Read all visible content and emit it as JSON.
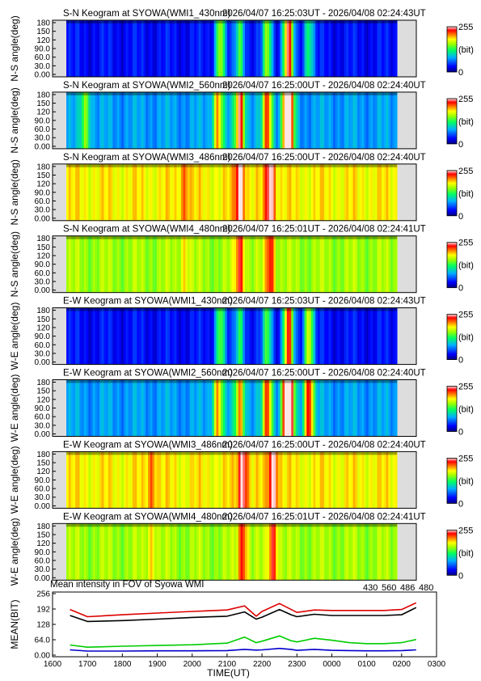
{
  "chart_data": {
    "type": "heatmap",
    "keograms": [
      {
        "title": "S-N Keogram at SYOWA(WMI1_430nm)",
        "time_range": "2026/04/07 16:25:03UT - 2026/04/08 02:24:43UT",
        "ylabel": "N-S angle(deg)",
        "palette": "cool",
        "peaks": [
          [
            2104,
            0.7
          ],
          [
            2140,
            0.55
          ],
          [
            2230,
            0.65
          ],
          [
            2265,
            0.55
          ],
          [
            2310,
            0.6
          ],
          [
            2345,
            0.5
          ]
        ]
      },
      {
        "title": "S-N Keogram at SYOWA(WMI2_560nm)",
        "time_range": "2026/04/07 16:25:00UT - 2026/04/08 02:24:40UT",
        "ylabel": "N-S angle(deg)",
        "palette": "mid",
        "peaks": [
          [
            1700,
            0.4
          ],
          [
            2100,
            0.7
          ],
          [
            2140,
            0.9
          ],
          [
            2230,
            0.8
          ],
          [
            2265,
            0.75
          ],
          [
            2310,
            0.7
          ]
        ]
      },
      {
        "title": "S-N Keogram at SYOWA(WMI3_486nm)",
        "time_range": "2026/04/07 16:25:00UT - 2026/04/08 02:24:40UT",
        "ylabel": "N-S angle(deg)",
        "palette": "hot",
        "peaks": [
          [
            2000,
            0.4
          ],
          [
            2140,
            0.9
          ],
          [
            2235,
            0.9
          ]
        ]
      },
      {
        "title": "S-N Keogram at SYOWA(WMI4_480nm)",
        "time_range": "2026/04/07 16:25:01UT - 2026/04/08 02:24:41UT",
        "ylabel": "N-S angle(deg)",
        "palette": "warm",
        "peaks": [
          [
            2000,
            0.4
          ],
          [
            2140,
            0.9
          ],
          [
            2235,
            0.9
          ]
        ]
      },
      {
        "title": "E-W Keogram at SYOWA(WMI1_430nm)",
        "time_range": "2026/04/07 16:25:03UT - 2026/04/08 02:24:43UT",
        "ylabel": "W-E angle(deg)",
        "palette": "cool",
        "peaks": [
          [
            2104,
            0.6
          ],
          [
            2140,
            0.5
          ],
          [
            2230,
            0.55
          ],
          [
            2265,
            0.5
          ],
          [
            2310,
            0.6
          ],
          [
            2345,
            0.8
          ]
        ]
      },
      {
        "title": "E-W Keogram at SYOWA(WMI2_560nm)",
        "time_range": "2026/04/07 16:25:00UT - 2026/04/08 02:24:40UT",
        "ylabel": "W-E angle(deg)",
        "palette": "mid",
        "peaks": [
          [
            2100,
            0.7
          ],
          [
            2140,
            0.7
          ],
          [
            2230,
            0.8
          ],
          [
            2265,
            0.9
          ],
          [
            2310,
            0.8
          ],
          [
            2345,
            0.9
          ]
        ]
      },
      {
        "title": "E-W Keogram at SYOWA(WMI3_486nm)",
        "time_range": "2026/04/07 16:25:00UT - 2026/04/08 02:24:40UT",
        "ylabel": "W-E angle(deg)",
        "palette": "hot",
        "peaks": [
          [
            1900,
            0.4
          ],
          [
            2145,
            0.9
          ],
          [
            2240,
            0.9
          ]
        ]
      },
      {
        "title": "E-W Keogram at SYOWA(WMI4_480nm)",
        "time_range": "2026/04/07 16:25:01UT - 2026/04/08 02:24:41UT",
        "ylabel": "W-E angle(deg)",
        "palette": "warm",
        "peaks": [
          [
            1900,
            0.4
          ],
          [
            2145,
            0.9
          ],
          [
            2240,
            0.9
          ]
        ]
      }
    ],
    "angle_ticks": [
      "180",
      "150",
      "120",
      "90.0",
      "60.0",
      "30.0",
      "0.00"
    ],
    "colorbar": {
      "max_label": "255",
      "unit_label": "(bit)",
      "min_label": "0",
      "range": [
        0,
        255
      ]
    },
    "mean_plot": {
      "type": "line",
      "title": "Mean intensity in FOV of Syowa WMI",
      "xlabel": "TIME(UT)",
      "ylabel": "MEAN(BIT)",
      "ylim": [
        0,
        256
      ],
      "y_ticks": [
        "256",
        "192",
        "128",
        "64.0",
        "0.00"
      ],
      "x_ticks": [
        "1600",
        "1700",
        "1800",
        "1900",
        "2000",
        "2100",
        "2200",
        "2300",
        "0000",
        "0100",
        "0200",
        "0300"
      ],
      "x": [
        "1630",
        "1700",
        "1800",
        "1900",
        "2000",
        "2100",
        "2130",
        "2150",
        "2200",
        "2230",
        "2250",
        "2300",
        "2330",
        "0000",
        "0030",
        "0100",
        "0130",
        "0200",
        "0225"
      ],
      "series": [
        {
          "name": "430",
          "color": "#0000cc",
          "values": [
            22,
            17,
            17,
            18,
            18,
            19,
            24,
            21,
            22,
            28,
            24,
            20,
            24,
            20,
            19,
            18,
            18,
            19,
            22
          ]
        },
        {
          "name": "560",
          "color": "#00cc00",
          "values": [
            42,
            33,
            37,
            40,
            43,
            50,
            75,
            52,
            58,
            80,
            60,
            55,
            70,
            62,
            52,
            48,
            48,
            52,
            65
          ]
        },
        {
          "name": "486",
          "color": "#dd0000",
          "values": [
            190,
            160,
            168,
            175,
            182,
            188,
            205,
            162,
            182,
            215,
            190,
            178,
            188,
            186,
            186,
            186,
            186,
            190,
            218
          ]
        },
        {
          "name": "480",
          "color": "#000000",
          "values": [
            165,
            140,
            144,
            150,
            157,
            162,
            180,
            150,
            158,
            190,
            168,
            160,
            170,
            165,
            165,
            165,
            165,
            168,
            198
          ]
        }
      ]
    }
  }
}
